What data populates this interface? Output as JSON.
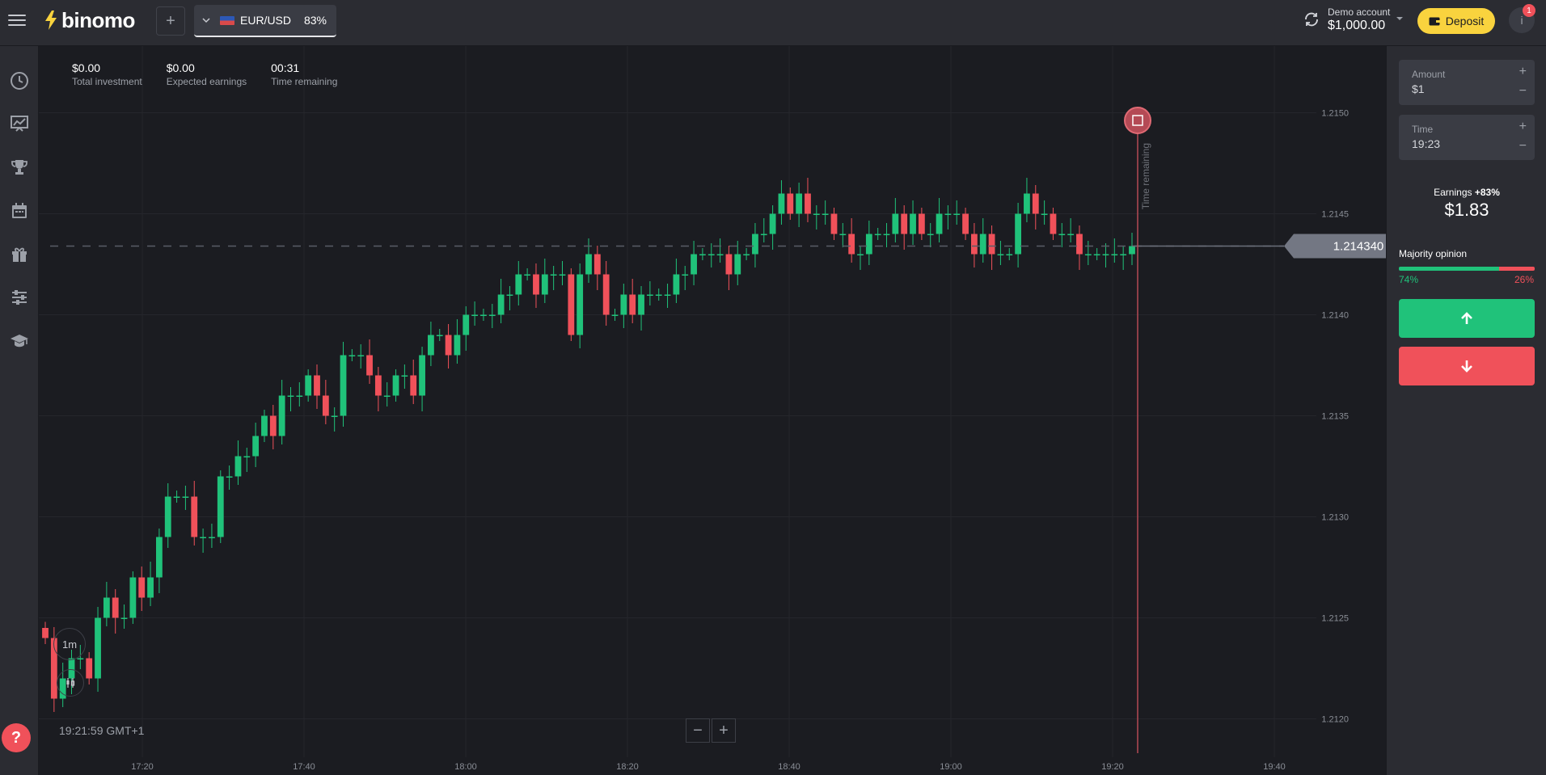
{
  "brand": {
    "name": "binomo"
  },
  "header": {
    "add_tab": "+",
    "asset": {
      "name": "EUR/USD",
      "payout": "83%"
    },
    "account": {
      "label": "Demo account",
      "balance": "$1,000.00"
    },
    "deposit_label": "Deposit",
    "profile_initial": "i",
    "notifications": "1"
  },
  "sidebar": {
    "items": [
      "clock-icon",
      "chart-icon",
      "trophy-icon",
      "calendar-icon",
      "gift-icon",
      "sliders-icon",
      "graduation-cap-icon"
    ],
    "help": "?"
  },
  "stats": [
    {
      "value": "$0.00",
      "label": "Total investment"
    },
    {
      "value": "$0.00",
      "label": "Expected earnings"
    },
    {
      "value": "00:31",
      "label": "Time remaining"
    }
  ],
  "chart": {
    "timeframe": "1m",
    "clock": "19:21:59 GMT+1",
    "zoom_out": "−",
    "zoom_in": "+"
  },
  "chart_data": {
    "type": "candlestick",
    "current_price": 1.21434,
    "current_price_label": "1.214340",
    "y_ticks": [
      "1.2150",
      "1.2145",
      "1.2140",
      "1.2135",
      "1.2130",
      "1.2125",
      "1.2120"
    ],
    "x_ticks": [
      "17:20",
      "17:40",
      "18:00",
      "18:20",
      "18:40",
      "19:00",
      "19:20",
      "19:40"
    ],
    "expiry_label": "Time remaining",
    "ylim": [
      1.21185,
      1.21525
    ],
    "close_prices": [
      1.2124,
      1.2121,
      1.2122,
      1.2123,
      1.2123,
      1.2122,
      1.2125,
      1.2126,
      1.2125,
      1.2125,
      1.2127,
      1.2126,
      1.2127,
      1.2129,
      1.2131,
      1.2131,
      1.2131,
      1.2129,
      1.2129,
      1.2129,
      1.2132,
      1.2132,
      1.2133,
      1.2133,
      1.2134,
      1.2135,
      1.2134,
      1.2136,
      1.2136,
      1.2136,
      1.2137,
      1.2136,
      1.2135,
      1.2135,
      1.2138,
      1.2138,
      1.2138,
      1.2137,
      1.2136,
      1.2136,
      1.2137,
      1.2137,
      1.2136,
      1.2138,
      1.2139,
      1.2139,
      1.2138,
      1.2139,
      1.214,
      1.214,
      1.214,
      1.214,
      1.2141,
      1.2141,
      1.2142,
      1.2142,
      1.2141,
      1.2142,
      1.2142,
      1.2142,
      1.2139,
      1.2142,
      1.2143,
      1.2142,
      1.214,
      1.214,
      1.2141,
      1.214,
      1.2141,
      1.2141,
      1.2141,
      1.2141,
      1.2142,
      1.2142,
      1.2143,
      1.2143,
      1.2143,
      1.2143,
      1.2142,
      1.2143,
      1.2143,
      1.2144,
      1.2144,
      1.2145,
      1.2146,
      1.2145,
      1.2146,
      1.2145,
      1.2145,
      1.2145,
      1.2144,
      1.2144,
      1.2143,
      1.2143,
      1.2144,
      1.2144,
      1.2144,
      1.2145,
      1.2144,
      1.2145,
      1.2144,
      1.2144,
      1.2145,
      1.2145,
      1.2145,
      1.2144,
      1.2143,
      1.2144,
      1.2143,
      1.2143,
      1.2143,
      1.2145,
      1.2146,
      1.2145,
      1.2145,
      1.2144,
      1.2144,
      1.2144,
      1.2143,
      1.2143,
      1.2143,
      1.2143,
      1.2143,
      1.2143,
      1.21434
    ]
  },
  "trade": {
    "amount": {
      "label": "Amount",
      "value": "$1",
      "plus": "+",
      "minus": "−"
    },
    "time": {
      "label": "Time",
      "value": "19:23",
      "plus": "+",
      "minus": "−"
    },
    "earnings_label": "Earnings",
    "earnings_pct": "+83%",
    "earnings_value": "$1.83",
    "majority_label": "Majority opinion",
    "majority_up": "74%",
    "majority_down": "26%",
    "majority_up_fraction": 0.74
  },
  "colors": {
    "up": "#20c27a",
    "down": "#f0515a",
    "accent": "#f9d33e",
    "bg": "#1b1c21",
    "panel": "#2b2c32"
  }
}
